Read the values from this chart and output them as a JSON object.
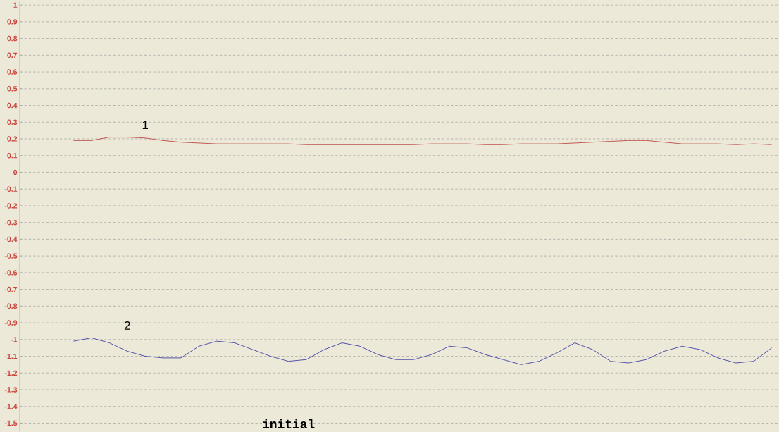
{
  "chart_data": {
    "type": "line",
    "categories": [
      null,
      null,
      null,
      null,
      null,
      null,
      null,
      null,
      null,
      null,
      null,
      null,
      null,
      null,
      null,
      null,
      null,
      null,
      null,
      null,
      null,
      null,
      null,
      null,
      null,
      null,
      null,
      null,
      null,
      null,
      null,
      null,
      null,
      null,
      null,
      null,
      null,
      null,
      null,
      null
    ],
    "series": [
      {
        "color": "#c0504d",
        "values": [
          0.19,
          0.19,
          0.21,
          0.21,
          0.205,
          0.19,
          0.18,
          0.175,
          0.17,
          0.17,
          0.17,
          0.17,
          0.17,
          0.165,
          0.165,
          0.165,
          0.165,
          0.165,
          0.165,
          0.165,
          0.17,
          0.17,
          0.17,
          0.165,
          0.165,
          0.17,
          0.17,
          0.17,
          0.175,
          0.18,
          0.185,
          0.19,
          0.19,
          0.18,
          0.17,
          0.17,
          0.17,
          0.165,
          0.17,
          0.165
        ]
      },
      {
        "color": "#4a4aa8",
        "values": [
          -1.01,
          -0.99,
          -1.02,
          -1.07,
          -1.1,
          -1.11,
          -1.11,
          -1.04,
          -1.01,
          -1.02,
          -1.06,
          -1.1,
          -1.13,
          -1.12,
          -1.06,
          -1.02,
          -1.04,
          -1.09,
          -1.12,
          -1.12,
          -1.09,
          -1.04,
          -1.05,
          -1.09,
          -1.12,
          -1.15,
          -1.13,
          -1.08,
          -1.02,
          -1.06,
          -1.13,
          -1.14,
          -1.12,
          -1.07,
          -1.04,
          -1.06,
          -1.11,
          -1.14,
          -1.13,
          -1.05
        ]
      }
    ],
    "annotations": [
      "1",
      "2",
      "initial"
    ],
    "ylim": [
      -1.55,
      1.02
    ],
    "yticks": [
      1,
      0.9,
      0.8,
      0.7,
      0.6,
      0.5,
      0.4,
      0.3,
      0.2,
      0.1,
      0,
      -0.1,
      -0.2,
      -0.3,
      -0.4,
      -0.5,
      -0.6,
      -0.7,
      -0.8,
      -0.9,
      -1,
      -1.1,
      -1.2,
      -1.3,
      -1.4,
      -1.5
    ],
    "grid": "y",
    "tick_labels": "y",
    "marker": "none",
    "line_style": "solid"
  }
}
